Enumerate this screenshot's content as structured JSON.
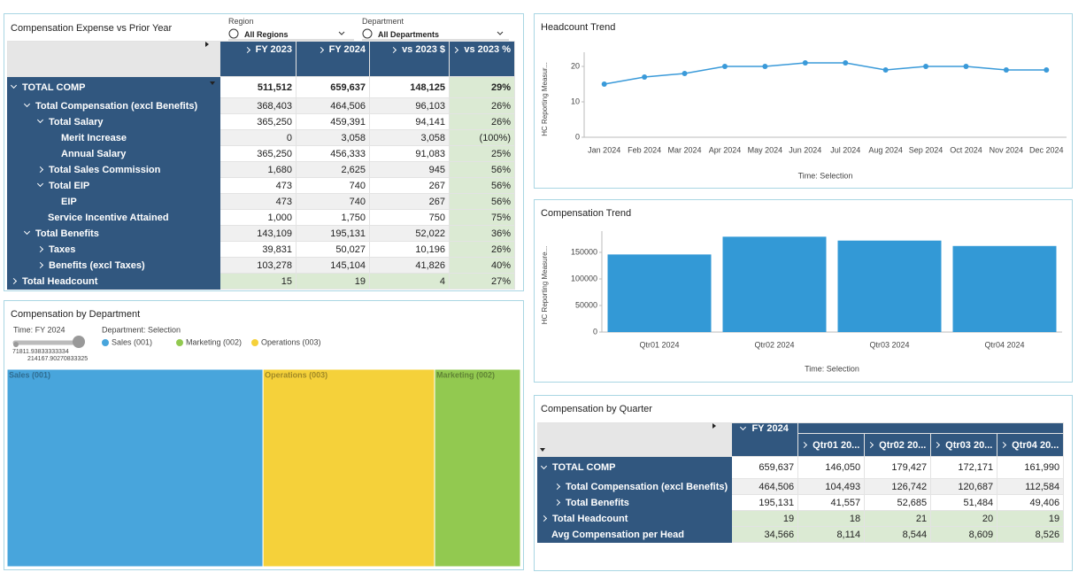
{
  "filters": [
    {
      "label": "Region",
      "value": "All Regions"
    },
    {
      "label": "Department",
      "value": "All Departments"
    }
  ],
  "comp_table": {
    "title": "Compensation Expense vs Prior Year",
    "columns": [
      "FY 2023",
      "FY 2024",
      "vs 2023 $",
      "vs 2023 %"
    ],
    "rows": [
      {
        "label": "TOTAL COMP",
        "cells": [
          "511,512",
          "659,637",
          "148,125",
          "29%"
        ]
      },
      {
        "label": "Total Compensation (excl Benefits)",
        "cells": [
          "368,403",
          "464,506",
          "96,103",
          "26%"
        ]
      },
      {
        "label": "Total Salary",
        "cells": [
          "365,250",
          "459,391",
          "94,141",
          "26%"
        ]
      },
      {
        "label": "Merit Increase",
        "cells": [
          "0",
          "3,058",
          "3,058",
          "(100%)"
        ]
      },
      {
        "label": "Annual Salary",
        "cells": [
          "365,250",
          "456,333",
          "91,083",
          "25%"
        ]
      },
      {
        "label": "Total Sales Commission",
        "cells": [
          "1,680",
          "2,625",
          "945",
          "56%"
        ]
      },
      {
        "label": "Total EIP",
        "cells": [
          "473",
          "740",
          "267",
          "56%"
        ]
      },
      {
        "label": "EIP",
        "cells": [
          "473",
          "740",
          "267",
          "56%"
        ]
      },
      {
        "label": "Service Incentive Attained",
        "cells": [
          "1,000",
          "1,750",
          "750",
          "75%"
        ]
      },
      {
        "label": "Total Benefits",
        "cells": [
          "143,109",
          "195,131",
          "52,022",
          "36%"
        ]
      },
      {
        "label": "Taxes",
        "cells": [
          "39,831",
          "50,027",
          "10,196",
          "26%"
        ]
      },
      {
        "label": "Benefits (excl Taxes)",
        "cells": [
          "103,278",
          "145,104",
          "41,826",
          "40%"
        ]
      },
      {
        "label": "Total Headcount",
        "cells": [
          "15",
          "19",
          "4",
          "27%"
        ]
      }
    ]
  },
  "chart_data": [
    {
      "type": "line",
      "title": "Headcount Trend",
      "x_label": "Time: Selection",
      "y_label": "HC Reporting Measur...",
      "categories": [
        "Jan 2024",
        "Feb 2024",
        "Mar 2024",
        "Apr 2024",
        "May 2024",
        "Jun 2024",
        "Jul 2024",
        "Aug 2024",
        "Sep 2024",
        "Oct 2024",
        "Nov 2024",
        "Dec 2024"
      ],
      "values": [
        15,
        17,
        18,
        20,
        20,
        21,
        21,
        19,
        20,
        20,
        19,
        19
      ],
      "color": "#3a9ad9",
      "ylim": [
        0,
        24
      ],
      "yticks": [
        0,
        10,
        20
      ],
      "grid": false
    },
    {
      "type": "bar",
      "title": "Compensation Trend",
      "x_label": "Time: Selection",
      "y_label": "HC Reporting Measure...",
      "categories": [
        "Qtr01 2024",
        "Qtr02 2024",
        "Qtr03 2024",
        "Qtr04 2024"
      ],
      "values": [
        146050,
        179427,
        172171,
        161990
      ],
      "color": "#3399d6",
      "ylim": [
        0,
        190000
      ],
      "yticks": [
        0,
        50000,
        100000,
        150000
      ],
      "grid": false
    },
    {
      "type": "treemap",
      "title": "Compensation by Department",
      "subtitle": "Time: FY 2024",
      "legend_title": "Department: Selection",
      "categories": [
        "Sales (001)",
        "Operations (003)",
        "Marketing (002)"
      ],
      "values": [
        214167.9,
        143600,
        71811.9
      ],
      "colors": [
        "#48a5dc",
        "#f5d13a",
        "#92c950"
      ],
      "legend": [
        {
          "name": "Sales (001)",
          "color": "#48a5dc"
        },
        {
          "name": "Marketing (002)",
          "color": "#92c950"
        },
        {
          "name": "Operations (003)",
          "color": "#f5d13a"
        }
      ],
      "size_labels": [
        "71811.93833333334",
        "214167.90270833325"
      ]
    }
  ],
  "quarter_table": {
    "title": "Compensation by Quarter",
    "group": "FY 2024",
    "columns": [
      "Qtr01 20...",
      "Qtr02 20...",
      "Qtr03 20...",
      "Qtr04 20..."
    ],
    "rows": [
      {
        "label": "TOTAL COMP",
        "cells": [
          "659,637",
          "146,050",
          "179,427",
          "172,171",
          "161,990"
        ]
      },
      {
        "label": "Total Compensation (excl Benefits)",
        "cells": [
          "464,506",
          "104,493",
          "126,742",
          "120,687",
          "112,584"
        ]
      },
      {
        "label": "Total Benefits",
        "cells": [
          "195,131",
          "41,557",
          "52,685",
          "51,484",
          "49,406"
        ]
      },
      {
        "label": "Total Headcount",
        "cells": [
          "19",
          "18",
          "21",
          "20",
          "19"
        ]
      },
      {
        "label": "Avg Compensation per Head",
        "cells": [
          "34,566",
          "8,114",
          "8,544",
          "8,609",
          "8,526"
        ]
      }
    ]
  }
}
